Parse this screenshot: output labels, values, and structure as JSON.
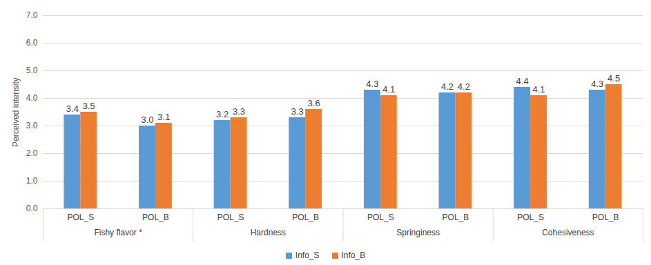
{
  "chart_data": {
    "type": "bar",
    "y_label": "Perceived intensity",
    "categories": [
      "POL_S",
      "POL_B",
      "POL_S",
      "POL_B",
      "POL_S",
      "POL_B",
      "POL_S",
      "POL_B"
    ],
    "groups": [
      "Fishy flavor *",
      "Hardness",
      "Springiness",
      "Cohesiveness"
    ],
    "series": [
      {
        "name": "Info_S",
        "color": "#5b9bd5",
        "values": [
          3.4,
          3.0,
          3.2,
          3.3,
          4.3,
          4.2,
          4.4,
          4.3
        ],
        "value_labels": [
          "3.4",
          "3.0",
          "3.2",
          "3.3",
          "4.3",
          "4.2",
          "4.4",
          "4.3"
        ]
      },
      {
        "name": "Info_B",
        "color": "#ed7d31",
        "values": [
          3.5,
          3.1,
          3.3,
          3.6,
          4.1,
          4.2,
          4.1,
          4.5
        ],
        "value_labels": [
          "3.5",
          "3.1",
          "3.3",
          "3.6",
          "4.1",
          "4.2",
          "4.1",
          "4.5"
        ]
      }
    ],
    "ylim": [
      0,
      7
    ],
    "yticks": [
      {
        "value": 0,
        "label": "0.0"
      },
      {
        "value": 1,
        "label": "1.0"
      },
      {
        "value": 2,
        "label": "2.0"
      },
      {
        "value": 3,
        "label": "3.0"
      },
      {
        "value": 4,
        "label": "4.0"
      },
      {
        "value": 5,
        "label": "5.0"
      },
      {
        "value": 6,
        "label": "6.0"
      },
      {
        "value": 7,
        "label": "7.0"
      }
    ],
    "grid": true,
    "data_labels": true,
    "legend": "bottom"
  }
}
